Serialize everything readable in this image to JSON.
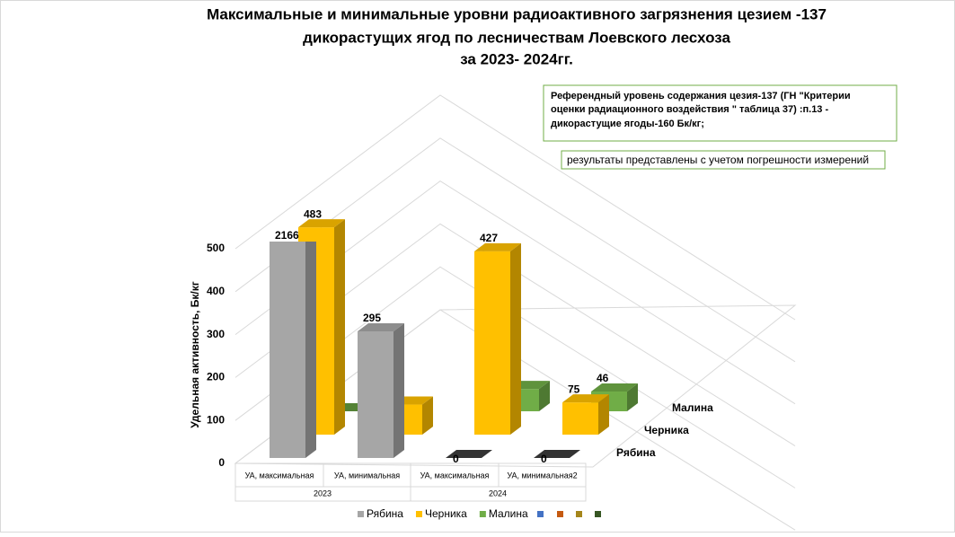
{
  "chart_data": {
    "type": "bar3d",
    "title": [
      "Максимальные и минимальные уровни радиоактивного загрязнения цезием -137",
      "дикорастущих ягод по лесничествам Лоевского лесхоза",
      "за  2023-  2024гг."
    ],
    "y_label": "Удельная активность, Бк/кг",
    "categories": [
      "УА, максимальная",
      "УА, минимальная",
      "УА, максимальная",
      "УА, минимальная2"
    ],
    "groups": [
      "2023",
      "2024"
    ],
    "series": [
      {
        "name": "Рябина",
        "color": "#a6a6a6",
        "values": [
          2166,
          295,
          0,
          0
        ]
      },
      {
        "name": "Черника",
        "color": "#ffc000",
        "values": [
          483,
          70,
          427,
          75
        ]
      },
      {
        "name": "Малина",
        "color": "#70ad47",
        "values": [
          0,
          null,
          52,
          46
        ]
      }
    ],
    "ylim": [
      0,
      500
    ],
    "yticks": [
      0,
      100,
      200,
      300,
      400,
      500
    ],
    "annotations": [
      "Референдный  уровень содержания  цезия-137 (ГН \"Критерии",
      "оценки радиационного воздействия \" таблица 37) :п.13 -",
      "дикорастущие ягоды-160 Бк/кг;",
      "результаты представлены с учетом погрешности измерений"
    ]
  }
}
